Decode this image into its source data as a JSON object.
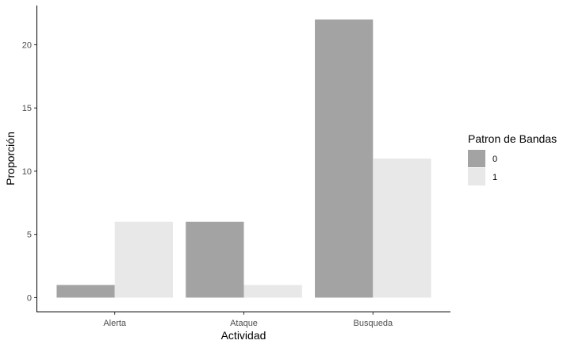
{
  "chart_data": {
    "type": "bar",
    "categories": [
      "Alerta",
      "Ataque",
      "Busqueda"
    ],
    "series": [
      {
        "name": "0",
        "values": [
          1,
          6,
          22
        ],
        "color": "#a3a3a3"
      },
      {
        "name": "1",
        "values": [
          6,
          1,
          11
        ],
        "color": "#e8e8e8"
      }
    ],
    "title": "",
    "xlabel": "Actividad",
    "ylabel": "Proporción",
    "ylim": [
      -1.1,
      23.1
    ],
    "yticks": [
      0,
      5,
      10,
      15,
      20
    ],
    "grid": false,
    "legend": {
      "title": "Patron de Bandas",
      "placement": "right"
    }
  }
}
